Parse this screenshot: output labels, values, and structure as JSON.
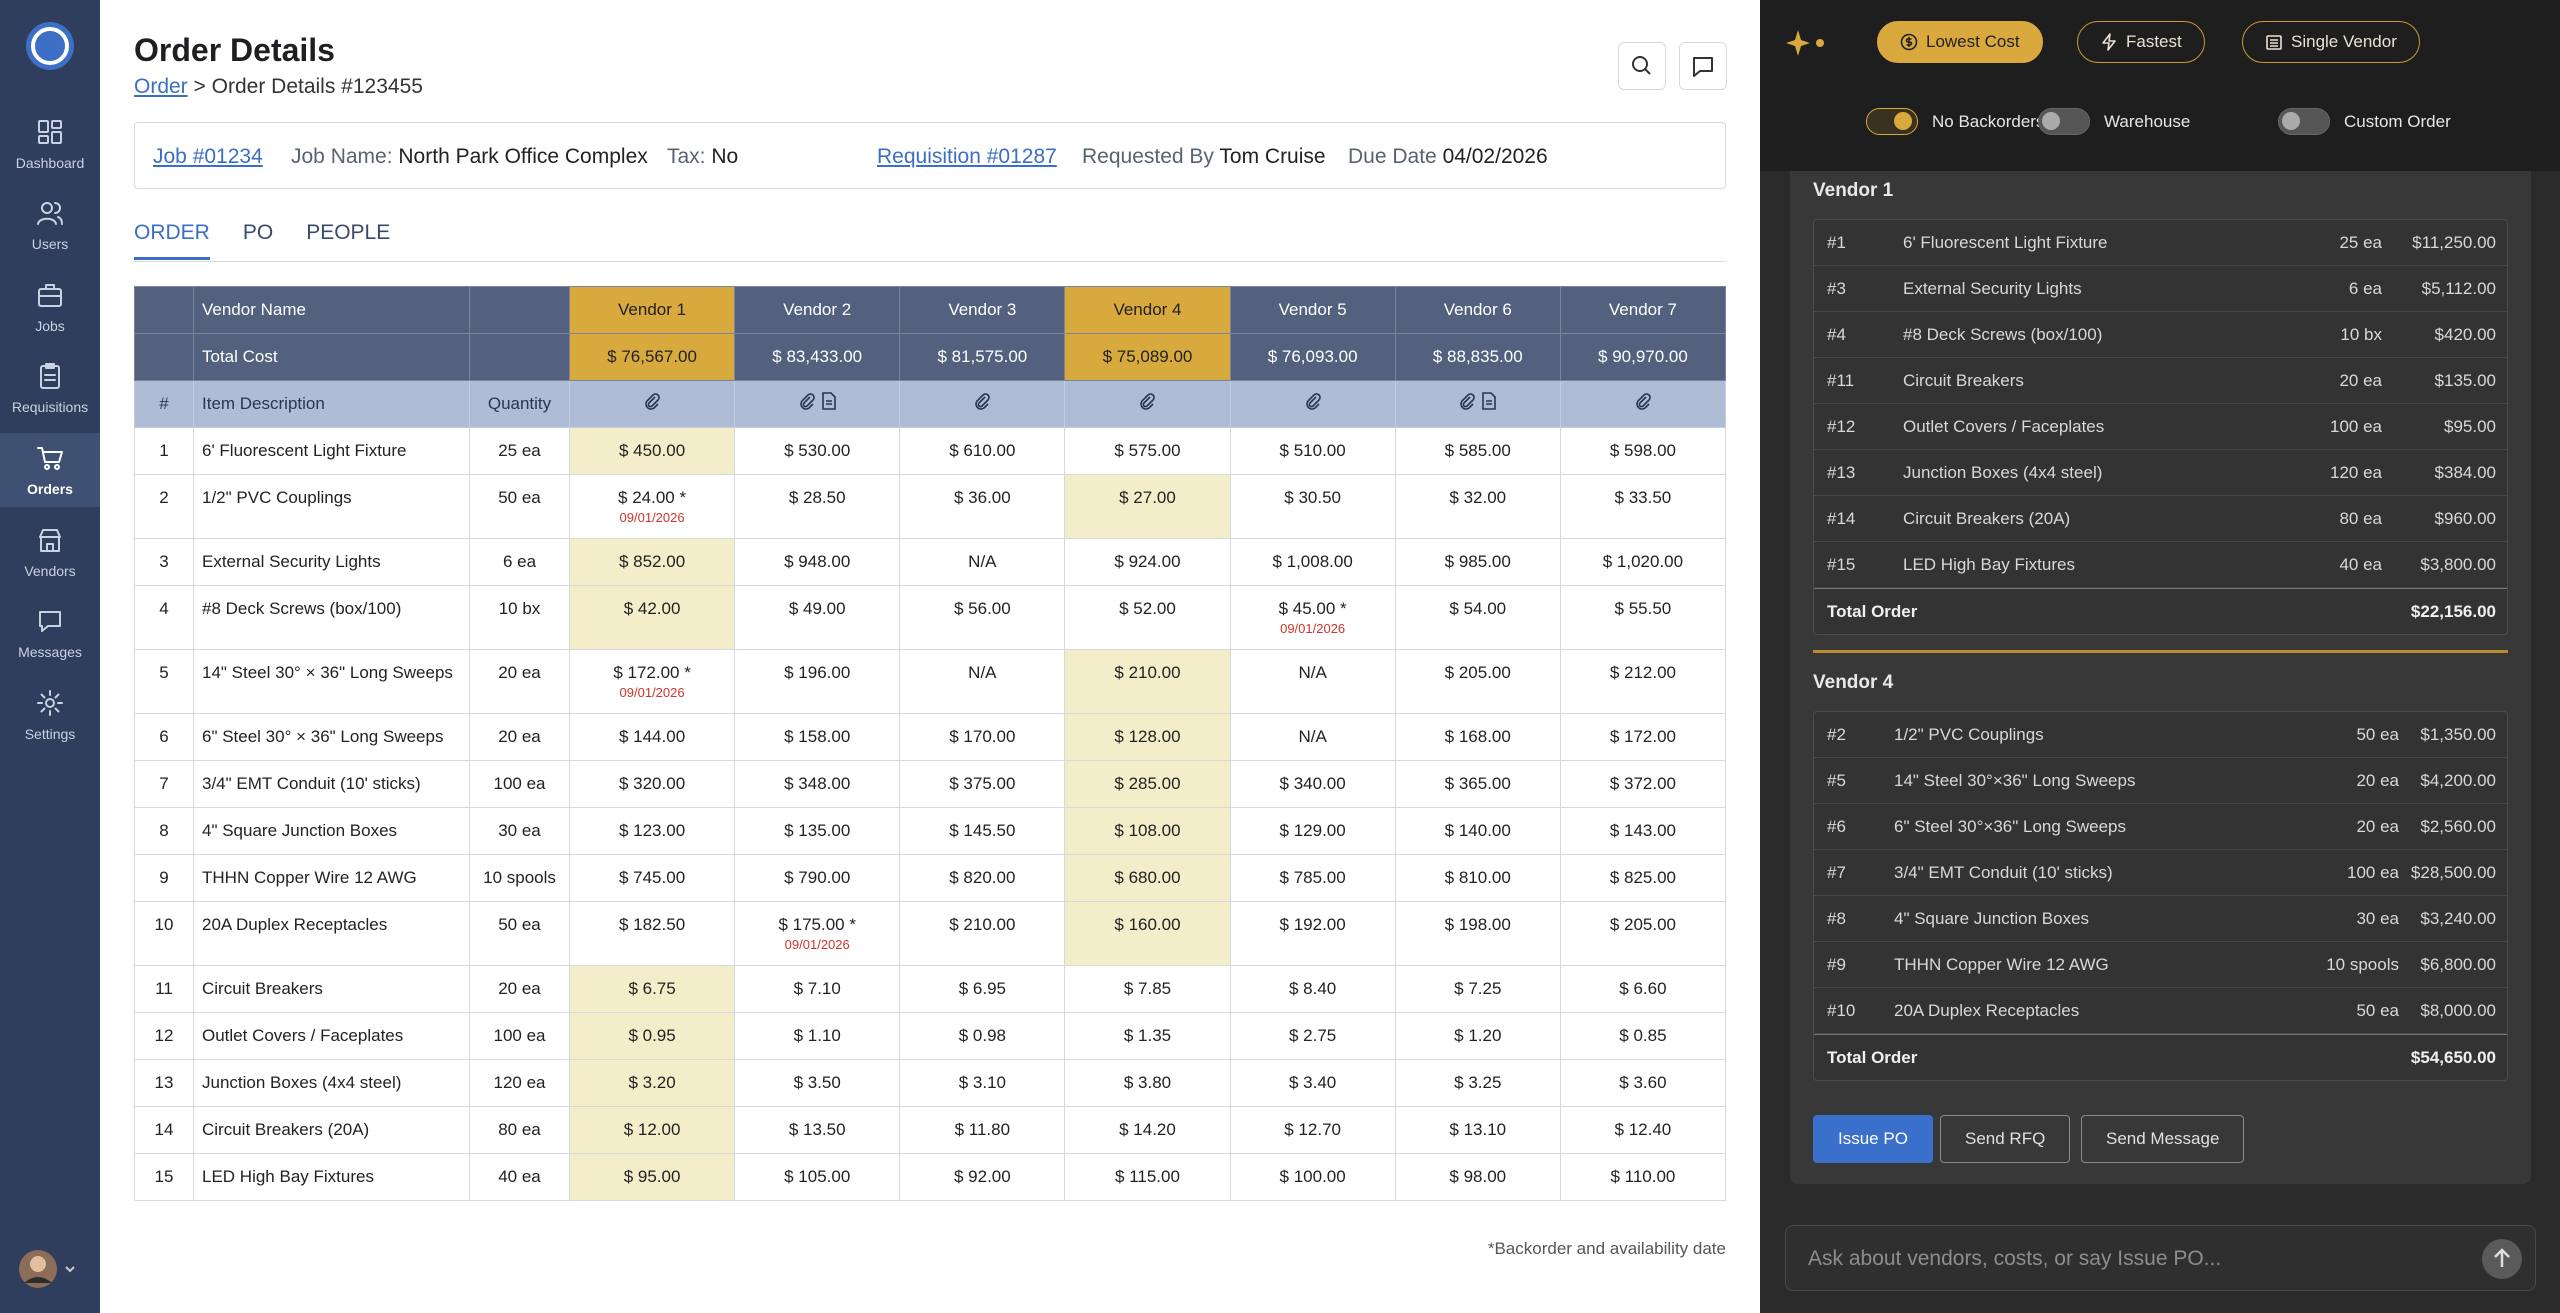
{
  "sidebar": {
    "nav": [
      {
        "label": "Dashboard",
        "active": false
      },
      {
        "label": "Users",
        "active": false
      },
      {
        "label": "Jobs",
        "active": false
      },
      {
        "label": "Requisitions",
        "active": false
      },
      {
        "label": "Orders",
        "active": true
      },
      {
        "label": "Vendors",
        "active": false
      },
      {
        "label": "Messages",
        "active": false
      },
      {
        "label": "Settings",
        "active": false
      }
    ]
  },
  "header": {
    "title": "Order Details",
    "breadcrumb": {
      "parent": "Order",
      "separator": ">",
      "current": "Order Details #123455"
    }
  },
  "info": {
    "job": "Job #01234",
    "job_name_label": "Job Name:",
    "job_name": "North Park Office Complex",
    "tax_label": "Tax:",
    "tax": "No",
    "requisition": "Requisition #01287",
    "requested_by_label": "Requested By",
    "requested_by": "Tom Cruise",
    "due_date_label": "Due Date",
    "due_date": "04/02/2026"
  },
  "tabs": [
    {
      "label": "ORDER",
      "active": true
    },
    {
      "label": "PO",
      "active": false
    },
    {
      "label": "PEOPLE",
      "active": false
    }
  ],
  "table": {
    "vendor_name_label": "Vendor Name",
    "total_cost_label": "Total Cost",
    "columns": [
      "#",
      "Item Description",
      "Quantity"
    ],
    "vendors": [
      {
        "name": "Vendor 1",
        "total": "$ 76,567.00",
        "selected": true,
        "document": false
      },
      {
        "name": "Vendor 2",
        "total": "$ 83,433.00",
        "selected": false,
        "document": true
      },
      {
        "name": "Vendor 3",
        "total": "$ 81,575.00",
        "selected": false,
        "document": false
      },
      {
        "name": "Vendor 4",
        "total": "$ 75,089.00",
        "selected": true,
        "document": false
      },
      {
        "name": "Vendor 5",
        "total": "$ 76,093.00",
        "selected": false,
        "document": false
      },
      {
        "name": "Vendor 6",
        "total": "$ 88,835.00",
        "selected": false,
        "document": true
      },
      {
        "name": "Vendor 7",
        "total": "$ 90,970.00",
        "selected": false,
        "document": false
      }
    ],
    "rows": [
      {
        "number": 1,
        "description": "6' Fluorescent Light Fixture",
        "quantity": "25 ea",
        "selected_vendor": 0,
        "prices": [
          "$ 450.00",
          "$ 530.00",
          "$ 610.00",
          "$ 575.00",
          "$ 510.00",
          "$ 585.00",
          "$ 598.00"
        ]
      },
      {
        "number": 2,
        "description": "1/2\" PVC Couplings",
        "quantity": "50 ea",
        "selected_vendor": 3,
        "prices": [
          {
            "price": "$ 24.00 *",
            "note": "09/01/2026"
          },
          "$ 28.50",
          "$ 36.00",
          "$ 27.00",
          "$ 30.50",
          "$ 32.00",
          "$ 33.50"
        ]
      },
      {
        "number": 3,
        "description": "External Security Lights",
        "quantity": "6 ea",
        "selected_vendor": 0,
        "prices": [
          "$ 852.00",
          "$ 948.00",
          "N/A",
          "$ 924.00",
          "$ 1,008.00",
          "$ 985.00",
          "$ 1,020.00"
        ]
      },
      {
        "number": 4,
        "description": "#8 Deck Screws (box/100)",
        "quantity": "10 bx",
        "selected_vendor": 0,
        "prices": [
          "$ 42.00",
          "$ 49.00",
          "$ 56.00",
          "$ 52.00",
          {
            "price": "$ 45.00 *",
            "note": "09/01/2026"
          },
          "$ 54.00",
          "$ 55.50"
        ]
      },
      {
        "number": 5,
        "description": "14\" Steel 30° × 36\" Long Sweeps",
        "quantity": "20 ea",
        "selected_vendor": 3,
        "prices": [
          {
            "price": "$ 172.00 *",
            "note": "09/01/2026"
          },
          "$ 196.00",
          "N/A",
          "$ 210.00",
          "N/A",
          "$ 205.00",
          "$ 212.00"
        ]
      },
      {
        "number": 6,
        "description": "6\" Steel 30° × 36\" Long Sweeps",
        "quantity": "20 ea",
        "selected_vendor": 3,
        "prices": [
          "$ 144.00",
          "$ 158.00",
          "$ 170.00",
          "$ 128.00",
          "N/A",
          "$ 168.00",
          "$ 172.00"
        ]
      },
      {
        "number": 7,
        "description": "3/4\" EMT Conduit (10' sticks)",
        "quantity": "100 ea",
        "selected_vendor": 3,
        "prices": [
          "$ 320.00",
          "$ 348.00",
          "$ 375.00",
          "$ 285.00",
          "$ 340.00",
          "$ 365.00",
          "$ 372.00"
        ]
      },
      {
        "number": 8,
        "description": "4\" Square Junction Boxes",
        "quantity": "30 ea",
        "selected_vendor": 3,
        "prices": [
          "$ 123.00",
          "$ 135.00",
          "$ 145.50",
          "$ 108.00",
          "$ 129.00",
          "$ 140.00",
          "$ 143.00"
        ]
      },
      {
        "number": 9,
        "description": "THHN Copper Wire 12 AWG",
        "quantity": "10 spools",
        "selected_vendor": 3,
        "prices": [
          "$ 745.00",
          "$ 790.00",
          "$ 820.00",
          "$ 680.00",
          "$ 785.00",
          "$ 810.00",
          "$ 825.00"
        ]
      },
      {
        "number": 10,
        "description": "20A Duplex Receptacles",
        "quantity": "50 ea",
        "selected_vendor": 3,
        "prices": [
          "$ 182.50",
          {
            "price": "$ 175.00 *",
            "note": "09/01/2026"
          },
          "$ 210.00",
          "$ 160.00",
          "$ 192.00",
          "$ 198.00",
          "$ 205.00"
        ]
      },
      {
        "number": 11,
        "description": "Circuit Breakers",
        "quantity": "20 ea",
        "selected_vendor": 0,
        "prices": [
          "$ 6.75",
          "$ 7.10",
          "$ 6.95",
          "$ 7.85",
          "$ 8.40",
          "$ 7.25",
          "$ 6.60"
        ]
      },
      {
        "number": 12,
        "description": "Outlet Covers / Faceplates",
        "quantity": "100 ea",
        "selected_vendor": 0,
        "prices": [
          "$ 0.95",
          "$ 1.10",
          "$ 0.98",
          "$ 1.35",
          "$ 2.75",
          "$ 1.20",
          "$ 0.85"
        ]
      },
      {
        "number": 13,
        "description": "Junction Boxes (4x4 steel)",
        "quantity": "120 ea",
        "selected_vendor": 0,
        "prices": [
          "$ 3.20",
          "$ 3.50",
          "$ 3.10",
          "$ 3.80",
          "$ 3.40",
          "$ 3.25",
          "$ 3.60"
        ]
      },
      {
        "number": 14,
        "description": "Circuit Breakers (20A)",
        "quantity": "80 ea",
        "selected_vendor": 0,
        "prices": [
          "$ 12.00",
          "$ 13.50",
          "$ 11.80",
          "$ 14.20",
          "$ 12.70",
          "$ 13.10",
          "$ 12.40"
        ]
      },
      {
        "number": 15,
        "description": "LED High Bay Fixtures",
        "quantity": "40 ea",
        "selected_vendor": 0,
        "prices": [
          "$ 95.00",
          "$ 105.00",
          "$ 92.00",
          "$ 115.00",
          "$ 100.00",
          "$ 98.00",
          "$ 110.00"
        ]
      }
    ],
    "footnote": "*Backorder and availability date"
  },
  "assistant": {
    "strategies": [
      {
        "label": "Lowest Cost",
        "active": true
      },
      {
        "label": "Fastest",
        "active": false
      },
      {
        "label": "Single Vendor",
        "active": false
      }
    ],
    "toggles": [
      {
        "label": "No Backorders",
        "on": true
      },
      {
        "label": "Warehouse",
        "on": false
      },
      {
        "label": "Custom Order",
        "on": false
      }
    ],
    "groups": [
      {
        "vendor": "Vendor 1",
        "items": [
          {
            "number": "#1",
            "description": "6' Fluorescent Light Fixture",
            "quantity": "25 ea",
            "amount": "$11,250.00"
          },
          {
            "number": "#3",
            "description": "External Security Lights",
            "quantity": "6 ea",
            "amount": "$5,112.00"
          },
          {
            "number": "#4",
            "description": "#8 Deck Screws (box/100)",
            "quantity": "10 bx",
            "amount": "$420.00"
          },
          {
            "number": "#11",
            "description": "Circuit Breakers",
            "quantity": "20 ea",
            "amount": "$135.00"
          },
          {
            "number": "#12",
            "description": "Outlet Covers / Faceplates",
            "quantity": "100 ea",
            "amount": "$95.00"
          },
          {
            "number": "#13",
            "description": "Junction Boxes (4x4 steel)",
            "quantity": "120 ea",
            "amount": "$384.00"
          },
          {
            "number": "#14",
            "description": "Circuit Breakers (20A)",
            "quantity": "80 ea",
            "amount": "$960.00"
          },
          {
            "number": "#15",
            "description": "LED High Bay Fixtures",
            "quantity": "40 ea",
            "amount": "$3,800.00"
          }
        ],
        "total_label": "Total Order",
        "total": "$22,156.00"
      },
      {
        "vendor": "Vendor 4",
        "items": [
          {
            "number": "#2",
            "description": "1/2\" PVC Couplings",
            "quantity": "50 ea",
            "amount": "$1,350.00"
          },
          {
            "number": "#5",
            "description": "14\" Steel 30°×36\" Long Sweeps",
            "quantity": "20 ea",
            "amount": "$4,200.00"
          },
          {
            "number": "#6",
            "description": "6\" Steel 30°×36\" Long Sweeps",
            "quantity": "20 ea",
            "amount": "$2,560.00"
          },
          {
            "number": "#7",
            "description": "3/4\" EMT Conduit (10' sticks)",
            "quantity": "100 ea",
            "amount": "$28,500.00"
          },
          {
            "number": "#8",
            "description": "4\" Square Junction Boxes",
            "quantity": "30 ea",
            "amount": "$3,240.00"
          },
          {
            "number": "#9",
            "description": "THHN Copper Wire 12 AWG",
            "quantity": "10 spools",
            "amount": "$6,800.00"
          },
          {
            "number": "#10",
            "description": "20A Duplex Receptacles",
            "quantity": "50 ea",
            "amount": "$8,000.00"
          }
        ],
        "total_label": "Total Order",
        "total": "$54,650.00"
      }
    ],
    "actions": [
      "Issue PO",
      "Send RFQ",
      "Send Message"
    ],
    "input_placeholder": "Ask about vendors, costs, or say Issue PO..."
  }
}
